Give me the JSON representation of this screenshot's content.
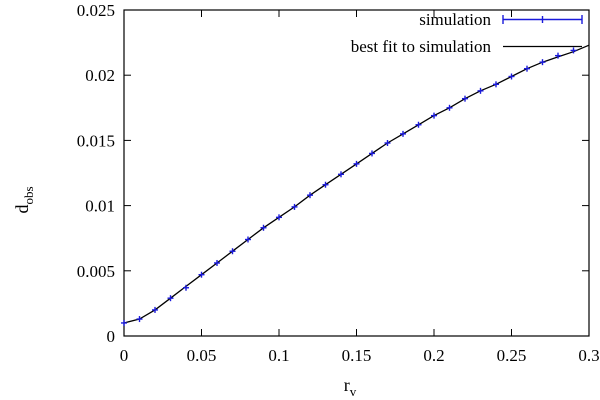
{
  "chart_data": {
    "type": "line",
    "colors": {
      "simulation": "#1a1adb",
      "fit": "#000000",
      "axes": "#000000"
    },
    "xlabel": {
      "main": "r",
      "sub": "v"
    },
    "ylabel": {
      "main": "d",
      "sub": "obs"
    },
    "xlim": [
      0,
      0.3
    ],
    "ylim": [
      0,
      0.025
    ],
    "x_ticks": [
      0,
      0.05,
      0.1,
      0.15,
      0.2,
      0.25,
      0.3
    ],
    "x_tick_labels": [
      "0",
      "0.05",
      "0.1",
      "0.15",
      "0.2",
      "0.25",
      "0.3"
    ],
    "y_ticks": [
      0,
      0.005,
      0.01,
      0.015,
      0.02,
      0.025
    ],
    "y_tick_labels": [
      "0",
      "0.005",
      "0.01",
      "0.015",
      "0.02",
      "0.025"
    ],
    "grid": false,
    "legend_position": "top-right",
    "series": [
      {
        "name": "simulation",
        "style": "points-with-errorbars",
        "x": [
          0.0,
          0.01,
          0.02,
          0.03,
          0.04,
          0.05,
          0.06,
          0.07,
          0.08,
          0.09,
          0.1,
          0.11,
          0.12,
          0.13,
          0.14,
          0.15,
          0.16,
          0.17,
          0.18,
          0.19,
          0.2,
          0.21,
          0.22,
          0.23,
          0.24,
          0.25,
          0.26,
          0.27,
          0.28,
          0.29
        ],
        "y": [
          0.001,
          0.0013,
          0.002,
          0.0029,
          0.0037,
          0.0047,
          0.0056,
          0.0065,
          0.0074,
          0.0083,
          0.0091,
          0.0099,
          0.0108,
          0.0116,
          0.0124,
          0.0132,
          0.014,
          0.0148,
          0.0155,
          0.0162,
          0.0169,
          0.0175,
          0.0182,
          0.0188,
          0.0193,
          0.0199,
          0.0205,
          0.021,
          0.0215,
          0.0219
        ]
      },
      {
        "name": "best fit to simulation",
        "style": "line",
        "x": [
          0.0,
          0.01,
          0.02,
          0.03,
          0.04,
          0.05,
          0.06,
          0.07,
          0.08,
          0.09,
          0.1,
          0.11,
          0.12,
          0.13,
          0.14,
          0.15,
          0.16,
          0.17,
          0.18,
          0.19,
          0.2,
          0.21,
          0.22,
          0.23,
          0.24,
          0.25,
          0.26,
          0.27,
          0.28,
          0.29,
          0.3
        ],
        "y": [
          0.001,
          0.0013,
          0.002,
          0.0029,
          0.0038,
          0.0047,
          0.0056,
          0.0065,
          0.0074,
          0.0083,
          0.0091,
          0.0099,
          0.0108,
          0.0116,
          0.0124,
          0.0132,
          0.014,
          0.0148,
          0.0155,
          0.0162,
          0.0169,
          0.0175,
          0.0182,
          0.0188,
          0.0193,
          0.0199,
          0.0205,
          0.021,
          0.0214,
          0.0218,
          0.0223
        ]
      }
    ]
  }
}
